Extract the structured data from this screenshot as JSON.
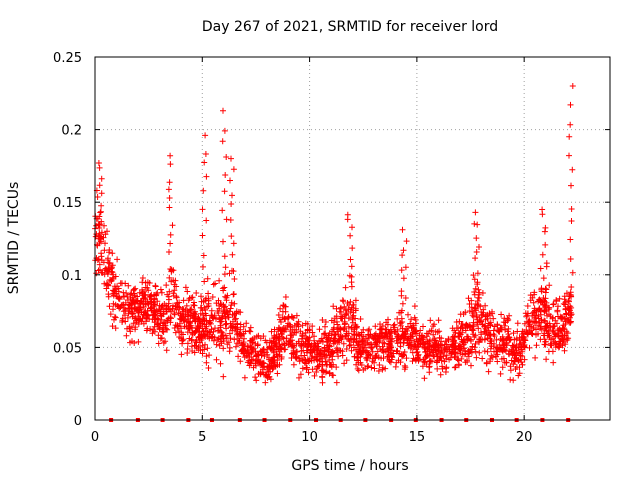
{
  "chart_data": {
    "type": "scatter",
    "title": "Day 267 of 2021, SRMTID for receiver lord",
    "xlabel": "GPS time / hours",
    "ylabel": "SRMTID / TECUs",
    "xlim": [
      0,
      24
    ],
    "ylim": [
      0,
      0.25
    ],
    "xticks": [
      0,
      5,
      10,
      15,
      20
    ],
    "xtick_labels": [
      "0",
      "5",
      "10",
      "15",
      "20"
    ],
    "yticks": [
      0,
      0.05,
      0.1,
      0.15,
      0.2,
      0.25
    ],
    "ytick_labels": [
      "0",
      "0.05",
      "0.1",
      "0.15",
      "0.2",
      "0.25"
    ],
    "grid": true,
    "color": "#ff0000",
    "marker": "+",
    "approximate_point_count": 2400,
    "series_envelope": {
      "x": [
        0.0,
        0.3,
        0.6,
        1.0,
        1.4,
        1.8,
        2.3,
        2.8,
        3.3,
        3.6,
        4.0,
        4.4,
        4.8,
        5.2,
        5.5,
        5.8,
        6.3,
        6.6,
        7.0,
        7.5,
        8.0,
        8.4,
        8.8,
        9.3,
        9.8,
        10.3,
        10.8,
        11.3,
        11.8,
        12.3,
        12.8,
        13.3,
        13.8,
        14.3,
        14.8,
        15.3,
        15.8,
        16.3,
        16.8,
        17.3,
        17.8,
        18.3,
        18.8,
        19.3,
        19.8,
        20.3,
        20.8,
        21.3,
        21.8,
        22.2
      ],
      "mean": [
        0.12,
        0.12,
        0.1,
        0.085,
        0.08,
        0.075,
        0.08,
        0.075,
        0.07,
        0.085,
        0.065,
        0.07,
        0.06,
        0.065,
        0.07,
        0.065,
        0.075,
        0.06,
        0.05,
        0.045,
        0.04,
        0.05,
        0.065,
        0.06,
        0.05,
        0.045,
        0.05,
        0.055,
        0.07,
        0.05,
        0.05,
        0.055,
        0.05,
        0.055,
        0.06,
        0.05,
        0.05,
        0.045,
        0.05,
        0.055,
        0.07,
        0.06,
        0.055,
        0.05,
        0.045,
        0.07,
        0.07,
        0.065,
        0.065,
        0.075
      ],
      "spread": [
        0.02,
        0.025,
        0.025,
        0.02,
        0.02,
        0.02,
        0.02,
        0.02,
        0.02,
        0.025,
        0.02,
        0.02,
        0.02,
        0.025,
        0.02,
        0.025,
        0.03,
        0.02,
        0.015,
        0.015,
        0.015,
        0.015,
        0.02,
        0.02,
        0.015,
        0.015,
        0.02,
        0.02,
        0.025,
        0.015,
        0.015,
        0.015,
        0.015,
        0.02,
        0.02,
        0.015,
        0.015,
        0.015,
        0.015,
        0.02,
        0.025,
        0.02,
        0.02,
        0.02,
        0.015,
        0.02,
        0.025,
        0.02,
        0.02,
        0.025
      ]
    },
    "spikes": [
      {
        "x": 0.2,
        "y": 0.177
      },
      {
        "x": 3.55,
        "y": 0.182
      },
      {
        "x": 5.1,
        "y": 0.196
      },
      {
        "x": 6.05,
        "y": 0.213
      },
      {
        "x": 6.4,
        "y": 0.18
      },
      {
        "x": 11.9,
        "y": 0.143
      },
      {
        "x": 14.4,
        "y": 0.131
      },
      {
        "x": 17.8,
        "y": 0.143
      },
      {
        "x": 20.95,
        "y": 0.145
      },
      {
        "x": 22.2,
        "y": 0.23
      }
    ],
    "zero_markers_x": [
      0.75,
      2.0,
      3.15,
      4.35,
      5.45,
      6.75,
      7.9,
      9.1,
      10.3,
      11.45,
      12.6,
      13.8,
      14.95,
      16.15,
      17.3,
      18.5,
      19.65,
      20.85,
      22.05
    ]
  }
}
